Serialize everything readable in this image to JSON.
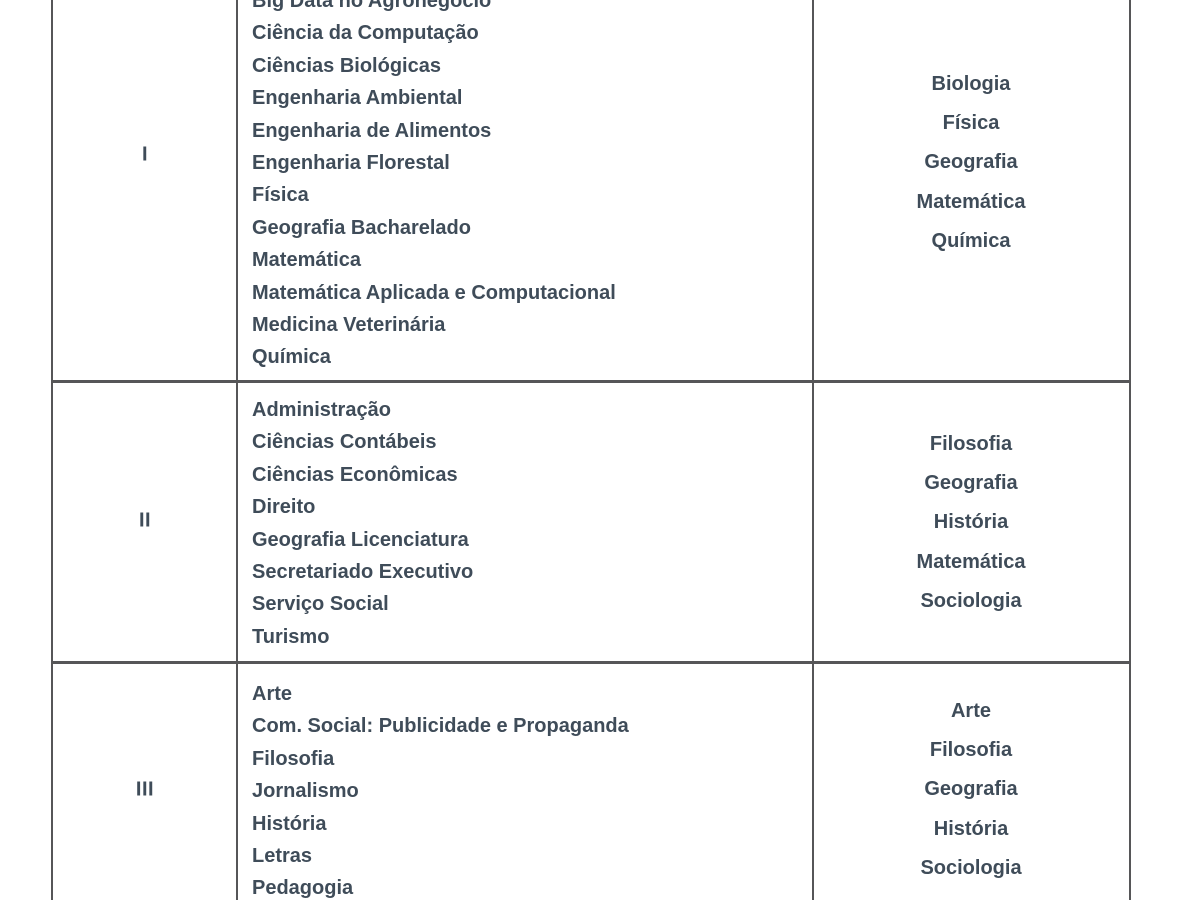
{
  "colors": {
    "text": "#3f4c59",
    "border": "#565658"
  },
  "table": {
    "rows": [
      {
        "group": "I",
        "courses": [
          "Big Data no Agronegócio",
          "Ciência da Computação",
          "Ciências Biológicas",
          "Engenharia Ambiental",
          "Engenharia de Alimentos",
          "Engenharia Florestal",
          "Física",
          "Geografia Bacharelado",
          "Matemática",
          "Matemática Aplicada e Computacional",
          "Medicina Veterinária",
          "Química"
        ],
        "subjects": [
          "Biologia",
          "Física",
          "Geografia",
          "Matemática",
          "Química"
        ]
      },
      {
        "group": "II",
        "courses": [
          "Administração",
          "Ciências Contábeis",
          "Ciências Econômicas",
          "Direito",
          "Geografia Licenciatura",
          "Secretariado Executivo",
          "Serviço Social",
          "Turismo"
        ],
        "subjects": [
          "Filosofia",
          "Geografia",
          "História",
          "Matemática",
          "Sociologia"
        ]
      },
      {
        "group": "III",
        "courses": [
          "Arte",
          "Com. Social: Publicidade e Propaganda",
          "Filosofia",
          "Jornalismo",
          "História",
          "Letras",
          "Pedagogia"
        ],
        "subjects": [
          "Arte",
          "Filosofia",
          "Geografia",
          "História",
          "Sociologia"
        ]
      }
    ]
  }
}
